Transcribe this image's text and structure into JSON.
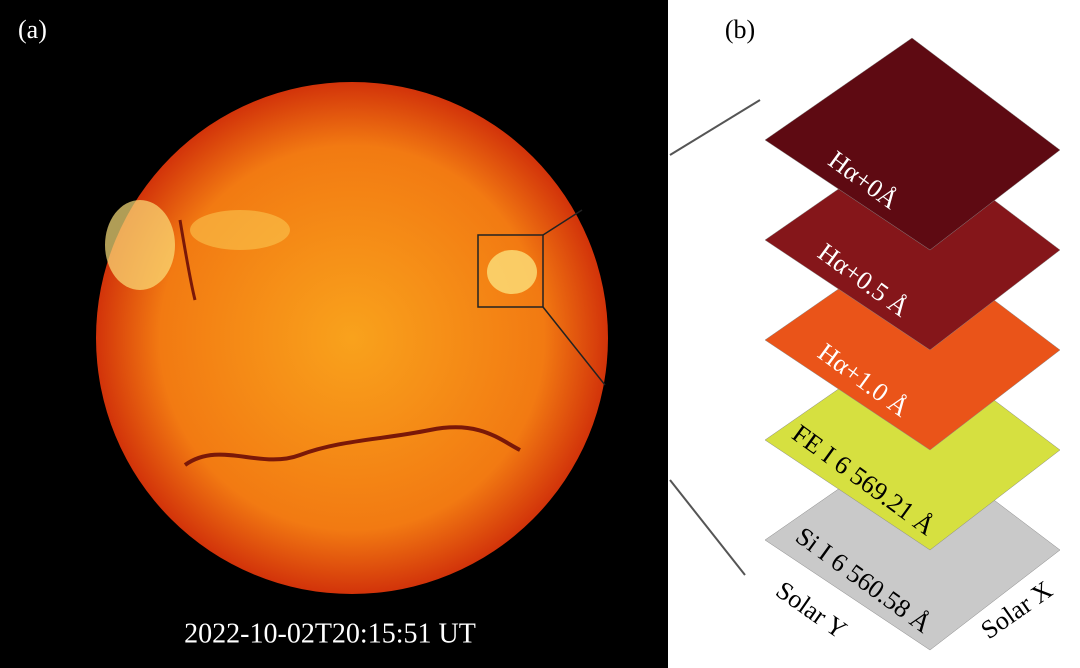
{
  "panel_a": {
    "label": "(a)",
    "timestamp": "2022-10-02T20:15:51 UT"
  },
  "panel_b": {
    "label": "(b)",
    "layers": [
      "Hα+0Å",
      "Hα+0.5 Å",
      "Hα+1.0 Å",
      "FE I 6 569.21 Å",
      "Si I 6 560.58 Å"
    ],
    "axes": [
      "Solar Y",
      "Solar X"
    ]
  }
}
